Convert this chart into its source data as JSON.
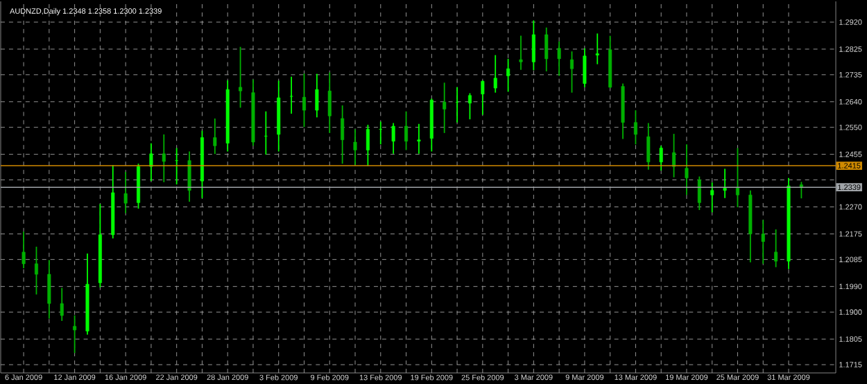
{
  "chart_data": {
    "type": "candlestick",
    "title": "AUDNZD,Daily  1.2348 1.2358 1.2300 1.2339",
    "categories": [
      "6 Jan 2009",
      null,
      null,
      null,
      "12 Jan 2009",
      null,
      null,
      null,
      "16 Jan 2009",
      null,
      null,
      null,
      "22 Jan 2009",
      null,
      null,
      null,
      "28 Jan 2009",
      null,
      null,
      null,
      "3 Feb 2009",
      null,
      null,
      null,
      "9 Feb 2009",
      null,
      null,
      null,
      "13 Feb 2009",
      null,
      null,
      null,
      "19 Feb 2009",
      null,
      null,
      null,
      "25 Feb 2009",
      null,
      null,
      null,
      "3 Mar 2009",
      null,
      null,
      null,
      "9 Mar 2009",
      null,
      null,
      null,
      "13 Mar 2009",
      null,
      null,
      null,
      "19 Mar 2009",
      null,
      null,
      null,
      "25 Mar 2009",
      null,
      null,
      null,
      "31 Mar 2009",
      null
    ],
    "ohlc": [
      [
        1.2111,
        1.2183,
        1.2054,
        1.207
      ],
      [
        1.207,
        1.213,
        1.1962,
        1.2033
      ],
      [
        1.2033,
        1.2083,
        1.1877,
        1.193
      ],
      [
        1.193,
        1.1985,
        1.1869,
        1.1888
      ],
      [
        1.185,
        1.1888,
        1.1756,
        1.1837
      ],
      [
        1.1833,
        1.2106,
        1.1821,
        1.1998
      ],
      [
        1.2003,
        1.228,
        1.1987,
        1.2172
      ],
      [
        1.2172,
        1.2417,
        1.2159,
        1.232
      ],
      [
        1.2317,
        1.2393,
        1.2248,
        1.2283
      ],
      [
        1.2285,
        1.2422,
        1.2264,
        1.2412
      ],
      [
        1.2412,
        1.2494,
        1.2361,
        1.2457
      ],
      [
        1.2457,
        1.2525,
        1.2357,
        1.243
      ],
      [
        1.2433,
        1.2477,
        1.2349,
        1.2433
      ],
      [
        1.2433,
        1.2465,
        1.2288,
        1.2328
      ],
      [
        1.2361,
        1.2538,
        1.2301,
        1.2514
      ],
      [
        1.2514,
        1.2581,
        1.2456,
        1.2485
      ],
      [
        1.2494,
        1.2715,
        1.2465,
        1.2683
      ],
      [
        1.2691,
        1.2833,
        1.2619,
        1.2678
      ],
      [
        1.2672,
        1.2718,
        1.2485,
        1.2498
      ],
      [
        1.2519,
        1.2606,
        1.2454,
        1.2519
      ],
      [
        1.2525,
        1.2714,
        1.2465,
        1.2654
      ],
      [
        1.2659,
        1.2728,
        1.2598,
        1.2659
      ],
      [
        1.2656,
        1.2739,
        1.2551,
        1.261
      ],
      [
        1.261,
        1.2738,
        1.2585,
        1.2683
      ],
      [
        1.2678,
        1.2743,
        1.253,
        1.259
      ],
      [
        1.2581,
        1.2627,
        1.2422,
        1.2506
      ],
      [
        1.2498,
        1.2543,
        1.2417,
        1.247
      ],
      [
        1.247,
        1.2559,
        1.2414,
        1.2543
      ],
      [
        1.2543,
        1.257,
        1.249,
        1.2543
      ],
      [
        1.2501,
        1.2565,
        1.2457,
        1.2554
      ],
      [
        1.2554,
        1.2606,
        1.247,
        1.2501
      ],
      [
        1.2501,
        1.2562,
        1.2457,
        1.2506
      ],
      [
        1.2511,
        1.2651,
        1.2465,
        1.2646
      ],
      [
        1.2639,
        1.2707,
        1.253,
        1.2614
      ],
      [
        1.2638,
        1.2691,
        1.2567,
        1.2638
      ],
      [
        1.2635,
        1.267,
        1.2578,
        1.2662
      ],
      [
        1.2667,
        1.2715,
        1.2594,
        1.2712
      ],
      [
        1.2688,
        1.2804,
        1.2672,
        1.2723
      ],
      [
        1.2731,
        1.2791,
        1.2675,
        1.2756
      ],
      [
        1.2788,
        1.2872,
        1.2752,
        1.278
      ],
      [
        1.278,
        1.2926,
        1.2751,
        1.2876
      ],
      [
        1.2876,
        1.2901,
        1.2747,
        1.2791
      ],
      [
        1.2828,
        1.2852,
        1.2731,
        1.2791
      ],
      [
        1.2788,
        1.2817,
        1.2672,
        1.2756
      ],
      [
        1.2704,
        1.2828,
        1.2691,
        1.2801
      ],
      [
        1.2804,
        1.288,
        1.2772,
        1.2809
      ],
      [
        1.2823,
        1.2872,
        1.2688,
        1.2691
      ],
      [
        1.2694,
        1.2704,
        1.2509,
        1.2567
      ],
      [
        1.2567,
        1.261,
        1.249,
        1.2525
      ],
      [
        1.2517,
        1.2565,
        1.2401,
        1.2428
      ],
      [
        1.2428,
        1.2485,
        1.2398,
        1.2477
      ],
      [
        1.2461,
        1.2527,
        1.2374,
        1.2412
      ],
      [
        1.2406,
        1.249,
        1.2312,
        1.2372
      ],
      [
        1.2365,
        1.2377,
        1.2259,
        1.2285
      ],
      [
        1.2312,
        1.2356,
        1.2251,
        1.2328
      ],
      [
        1.2328,
        1.2404,
        1.2301,
        1.2336
      ],
      [
        1.2336,
        1.2477,
        1.2269,
        1.2312
      ],
      [
        1.2312,
        1.2328,
        1.2075,
        1.2175
      ],
      [
        1.2175,
        1.2224,
        1.207,
        1.2148
      ],
      [
        1.2111,
        1.2191,
        1.2058,
        1.2079
      ],
      [
        1.2079,
        1.2372,
        1.2051,
        1.2344
      ],
      [
        1.2348,
        1.2358,
        1.23,
        1.2339
      ]
    ],
    "colors": [
      "#00b000",
      "#00b000",
      "#00b000",
      "#00b000",
      "#00b000",
      "#00ff00",
      "#00ff00",
      "#00ff00",
      "#00b000",
      "#00ff00",
      "#00ff00",
      "#00b000",
      "#00ff00",
      "#00b000",
      "#00ff00",
      "#00b000",
      "#00ff00",
      "#00b000",
      "#00b000",
      "#00ff00",
      "#00ff00",
      "#00ff00",
      "#00b000",
      "#00ff00",
      "#00b000",
      "#00b000",
      "#00b000",
      "#00ff00",
      "#00ff00",
      "#00ff00",
      "#00b000",
      "#00ff00",
      "#00ff00",
      "#00b000",
      "#00ff00",
      "#00ff00",
      "#00ff00",
      "#00ff00",
      "#00ff00",
      "#00b000",
      "#00ff00",
      "#00b000",
      "#00b000",
      "#00b000",
      "#00ff00",
      "#00ff00",
      "#00b000",
      "#00b000",
      "#00b000",
      "#00b000",
      "#00ff00",
      "#00b000",
      "#00b000",
      "#00b000",
      "#00ff00",
      "#00ff00",
      "#00b000",
      "#00b000",
      "#00b000",
      "#00b000",
      "#00ff00",
      "#00b000"
    ],
    "ylim": [
      1.1686,
      1.2993
    ],
    "yticks": [
      {
        "value": 1.292,
        "label": "1.2920"
      },
      1.2825,
      1.2735,
      {
        "value": 1.264,
        "label": "1.2640"
      },
      {
        "value": 1.255,
        "label": "1.2550"
      },
      1.2455,
      {
        "value": 1.2365,
        "label": null
      },
      {
        "value": 1.227,
        "label": "1.2270"
      },
      1.2175,
      1.2085,
      {
        "value": 1.199,
        "label": "1.1990"
      },
      {
        "value": 1.19,
        "label": "1.1900"
      },
      1.1805,
      1.1715
    ],
    "ref_lines": [
      {
        "axis": "y",
        "value": 1.2415,
        "label": "1.2415",
        "color": "#d08a00"
      },
      {
        "axis": "y",
        "value": 1.2339,
        "label": "1.2339",
        "color": "#a0a4a8"
      }
    ],
    "grid": true
  }
}
